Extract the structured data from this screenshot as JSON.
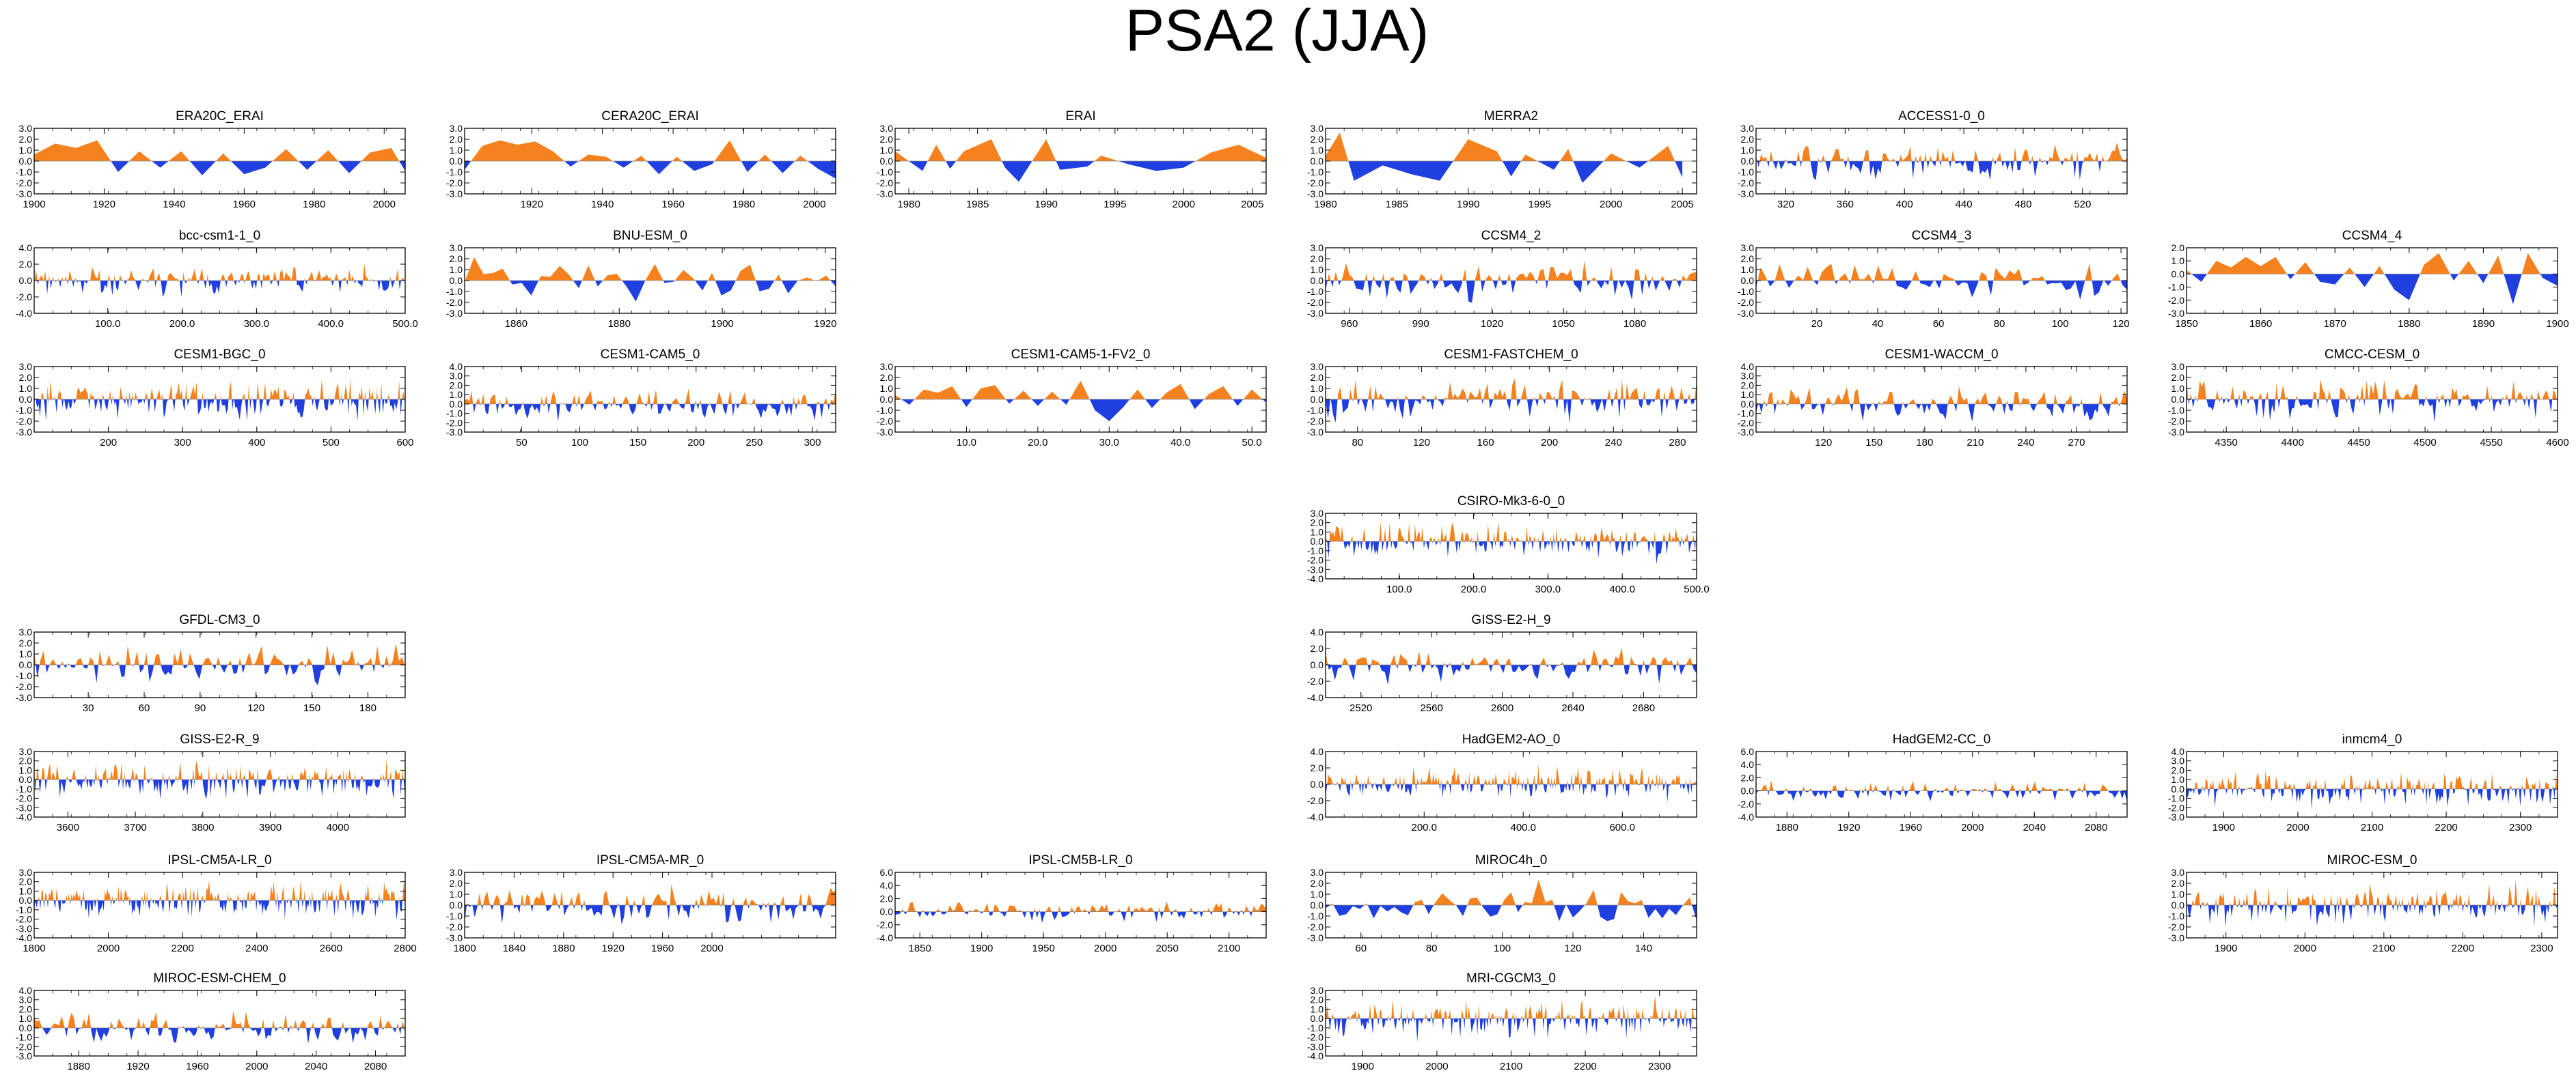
{
  "title": "PSA2 (JJA)",
  "colors": {
    "positive": "#f5821f",
    "negative": "#1f3fe0",
    "axis": "#000000"
  },
  "chart_data": [
    {
      "type": "area",
      "title": "ERA20C_ERAI",
      "xlim": [
        1900,
        2006
      ],
      "ylim": [
        -3,
        3
      ],
      "yticks": [
        "3.0",
        "2.0",
        "1.0",
        "0.0",
        "-1.0",
        "-2.0",
        "-3.0"
      ],
      "xticks": [
        "1900",
        "1920",
        "1940",
        "1960",
        "1980",
        "2000"
      ],
      "series": {
        "x": [
          1900,
          1906,
          1912,
          1918,
          1924,
          1930,
          1936,
          1942,
          1948,
          1954,
          1960,
          1966,
          1972,
          1978,
          1984,
          1990,
          1996,
          2002,
          2006
        ],
        "y": [
          0.6,
          1.6,
          1.2,
          1.9,
          -1.0,
          0.9,
          -0.6,
          0.9,
          -1.3,
          0.7,
          -1.2,
          -0.6,
          1.1,
          -0.8,
          1.0,
          -1.1,
          0.8,
          1.2,
          -0.9
        ]
      }
    },
    {
      "type": "area",
      "title": "CERA20C_ERAI",
      "xlim": [
        1901,
        2006
      ],
      "ylim": [
        -3,
        3
      ],
      "yticks": [
        "3.0",
        "2.0",
        "1.0",
        "0.0",
        "-1.0",
        "-2.0",
        "-3.0"
      ],
      "xticks": [
        "1920",
        "1940",
        "1960",
        "1980",
        "2000"
      ],
      "series": {
        "x": [
          1901,
          1906,
          1911,
          1916,
          1921,
          1926,
          1931,
          1936,
          1941,
          1946,
          1951,
          1956,
          1961,
          1966,
          1971,
          1976,
          1981,
          1986,
          1991,
          1996,
          2001,
          2006
        ],
        "y": [
          -0.8,
          1.4,
          1.9,
          1.5,
          1.8,
          0.9,
          -0.5,
          0.6,
          0.4,
          -0.6,
          0.5,
          -1.2,
          0.4,
          -0.9,
          -0.3,
          1.9,
          -1.0,
          0.6,
          -1.1,
          0.5,
          -0.7,
          -1.6
        ]
      }
    },
    {
      "type": "area",
      "title": "ERAI",
      "xlim": [
        1979,
        2006
      ],
      "ylim": [
        -3,
        3
      ],
      "yticks": [
        "3.0",
        "2.0",
        "1.0",
        "0.0",
        "-1.0",
        "-2.0",
        "-3.0"
      ],
      "xticks": [
        "1980",
        "1985",
        "1990",
        "1995",
        "2000",
        "2005"
      ],
      "series": {
        "x": [
          1979,
          1981,
          1982,
          1983,
          1984,
          1986,
          1987,
          1988,
          1990,
          1991,
          1993,
          1994,
          1996,
          1998,
          2000,
          2002,
          2004,
          2006
        ],
        "y": [
          0.9,
          -0.9,
          1.5,
          -0.7,
          0.9,
          2.0,
          -0.6,
          -1.9,
          2.0,
          -0.8,
          -0.5,
          0.5,
          -0.3,
          -0.9,
          -0.6,
          0.8,
          1.5,
          0.3
        ]
      }
    },
    {
      "type": "area",
      "title": "MERRA2",
      "xlim": [
        1980,
        2006
      ],
      "ylim": [
        -3,
        3
      ],
      "yticks": [
        "3.0",
        "2.0",
        "1.0",
        "0.0",
        "-1.0",
        "-2.0",
        "-3.0"
      ],
      "xticks": [
        "1980",
        "1985",
        "1990",
        "1995",
        "2000",
        "2005"
      ],
      "series": {
        "x": [
          1980,
          1981,
          1982,
          1984,
          1986,
          1988,
          1990,
          1992,
          1993,
          1994,
          1996,
          1997,
          1998,
          2000,
          2002,
          2004,
          2005
        ],
        "y": [
          0.5,
          2.6,
          -1.8,
          -0.4,
          -1.2,
          -1.8,
          2.0,
          0.9,
          -1.4,
          0.6,
          -0.8,
          1.1,
          -2.0,
          0.7,
          -0.6,
          1.4,
          -1.5
        ]
      }
    },
    {
      "type": "area",
      "title": "ACCESS1-0_0",
      "xlim": [
        300,
        550
      ],
      "ylim": [
        -3,
        3
      ],
      "yticks": [
        "3.0",
        "2.0",
        "1.0",
        "0.0",
        "-1.0",
        "-2.0",
        "-3.0"
      ],
      "xticks": [
        "320",
        "360",
        "400",
        "440",
        "480",
        "520"
      ],
      "series": {
        "gen": {
          "n": 150,
          "amp": 1.4,
          "seed": 5
        }
      }
    },
    {
      "type": "area",
      "title": "bcc-csm1-1_0",
      "xlim": [
        1,
        500
      ],
      "ylim": [
        -4,
        4
      ],
      "yticks": [
        "4.0",
        "2.0",
        "0.0",
        "-2.0",
        "-4.0"
      ],
      "xticks": [
        "100.0",
        "200.0",
        "300.0",
        "400.0",
        "500.0"
      ],
      "series": {
        "gen": {
          "n": 200,
          "amp": 1.5,
          "seed": 7
        }
      }
    },
    {
      "type": "area",
      "title": "BNU-ESM_0",
      "xlim": [
        1850,
        1922
      ],
      "ylim": [
        -3,
        3
      ],
      "yticks": [
        "3.0",
        "2.0",
        "1.0",
        "0.0",
        "-1.0",
        "-2.0",
        "-3.0"
      ],
      "xticks": [
        "1860",
        "1880",
        "1900",
        "1920"
      ],
      "series": {
        "gen": {
          "n": 40,
          "amp": 1.6,
          "seed": 11
        }
      }
    },
    {
      "type": "area",
      "title": "CCSM4_2",
      "xlim": [
        950,
        1106
      ],
      "ylim": [
        -3,
        3
      ],
      "yticks": [
        "3.0",
        "2.0",
        "1.0",
        "0.0",
        "-1.0",
        "-2.0",
        "-3.0"
      ],
      "xticks": [
        "960",
        "990",
        "1020",
        "1050",
        "1080"
      ],
      "series": {
        "gen": {
          "n": 110,
          "amp": 1.5,
          "seed": 13
        }
      }
    },
    {
      "type": "area",
      "title": "CCSM4_3",
      "xlim": [
        0,
        122
      ],
      "ylim": [
        -3,
        3
      ],
      "yticks": [
        "3.0",
        "2.0",
        "1.0",
        "0.0",
        "-1.0",
        "-2.0",
        "-3.0"
      ],
      "xticks": [
        "20",
        "40",
        "60",
        "80",
        "100",
        "120"
      ],
      "series": {
        "gen": {
          "n": 80,
          "amp": 1.4,
          "seed": 17
        }
      }
    },
    {
      "type": "area",
      "title": "CCSM4_4",
      "xlim": [
        1850,
        1900
      ],
      "ylim": [
        -3,
        2
      ],
      "yticks": [
        "2.0",
        "1.0",
        "0.0",
        "-1.0",
        "-2.0",
        "-3.0"
      ],
      "xticks": [
        "1850",
        "1860",
        "1870",
        "1880",
        "1890",
        "1900"
      ],
      "series": {
        "x": [
          1850,
          1852,
          1854,
          1856,
          1858,
          1860,
          1862,
          1864,
          1866,
          1868,
          1870,
          1872,
          1874,
          1876,
          1878,
          1880,
          1882,
          1884,
          1886,
          1888,
          1890,
          1892,
          1894,
          1896,
          1898,
          1900
        ],
        "y": [
          0.3,
          -0.6,
          1.0,
          0.5,
          1.3,
          0.6,
          1.3,
          -0.4,
          0.9,
          -0.6,
          -0.8,
          0.5,
          -1.0,
          0.6,
          -1.2,
          -2.0,
          0.7,
          1.6,
          -0.5,
          1.0,
          -0.7,
          1.4,
          -2.3,
          1.6,
          -0.3,
          -0.9
        ]
      }
    },
    {
      "type": "area",
      "title": "CESM1-BGC_0",
      "xlim": [
        100,
        600
      ],
      "ylim": [
        -3,
        3
      ],
      "yticks": [
        "3.0",
        "2.0",
        "1.0",
        "0.0",
        "-1.0",
        "-2.0",
        "-3.0"
      ],
      "xticks": [
        "200",
        "300",
        "400",
        "500",
        "600"
      ],
      "series": {
        "gen": {
          "n": 250,
          "amp": 1.6,
          "seed": 19
        }
      }
    },
    {
      "type": "area",
      "title": "CESM1-CAM5_0",
      "xlim": [
        1,
        320
      ],
      "ylim": [
        -3,
        4
      ],
      "yticks": [
        "4.0",
        "3.0",
        "2.0",
        "1.0",
        "0.0",
        "-1.0",
        "-2.0",
        "-3.0"
      ],
      "xticks": [
        "50",
        "100",
        "150",
        "200",
        "250",
        "300"
      ],
      "series": {
        "gen": {
          "n": 160,
          "amp": 1.4,
          "seed": 23
        }
      }
    },
    {
      "type": "area",
      "title": "CESM1-CAM5-1-FV2_0",
      "xlim": [
        0,
        52
      ],
      "ylim": [
        -3,
        3
      ],
      "yticks": [
        "3.0",
        "2.0",
        "1.0",
        "0.0",
        "-1.0",
        "-2.0",
        "-3.0"
      ],
      "xticks": [
        "10.0",
        "20.0",
        "30.0",
        "40.0",
        "50.0"
      ],
      "series": {
        "x": [
          0,
          2,
          4,
          6,
          8,
          10,
          12,
          14,
          16,
          18,
          20,
          22,
          24,
          26,
          28,
          30,
          32,
          34,
          36,
          38,
          40,
          42,
          44,
          46,
          48,
          50,
          52
        ],
        "y": [
          0.4,
          -0.5,
          0.9,
          0.6,
          1.2,
          -0.7,
          1.0,
          1.3,
          -0.4,
          0.8,
          -0.6,
          0.7,
          -0.5,
          1.7,
          -1.0,
          -2.0,
          -0.7,
          0.9,
          -0.8,
          0.6,
          1.4,
          -0.9,
          0.5,
          1.2,
          -0.6,
          0.9,
          -0.3
        ]
      }
    },
    {
      "type": "area",
      "title": "CESM1-FASTCHEM_0",
      "xlim": [
        60,
        292
      ],
      "ylim": [
        -3,
        3
      ],
      "yticks": [
        "3.0",
        "2.0",
        "1.0",
        "0.0",
        "-1.0",
        "-2.0",
        "-3.0"
      ],
      "xticks": [
        "80",
        "120",
        "160",
        "200",
        "240",
        "280"
      ],
      "series": {
        "gen": {
          "n": 150,
          "amp": 1.5,
          "seed": 29
        }
      }
    },
    {
      "type": "area",
      "title": "CESM1-WACCM_0",
      "xlim": [
        80,
        300
      ],
      "ylim": [
        -3,
        4
      ],
      "yticks": [
        "4.0",
        "3.0",
        "2.0",
        "1.0",
        "0.0",
        "-1.0",
        "-2.0",
        "-3.0"
      ],
      "xticks": [
        "120",
        "150",
        "180",
        "210",
        "240",
        "270"
      ],
      "series": {
        "gen": {
          "n": 140,
          "amp": 1.5,
          "seed": 31
        }
      }
    },
    {
      "type": "area",
      "title": "CMCC-CESM_0",
      "xlim": [
        4320,
        4600
      ],
      "ylim": [
        -3,
        3
      ],
      "yticks": [
        "3.0",
        "2.0",
        "1.0",
        "0.0",
        "-1.0",
        "-2.0",
        "-3.0"
      ],
      "xticks": [
        "4350",
        "4400",
        "4450",
        "4500",
        "4550",
        "4600"
      ],
      "series": {
        "gen": {
          "n": 170,
          "amp": 1.5,
          "seed": 37
        }
      }
    },
    {
      "type": "area",
      "title": "CSIRO-Mk3-6-0_0",
      "xlim": [
        1,
        500
      ],
      "ylim": [
        -4,
        3
      ],
      "yticks": [
        "3.0",
        "2.0",
        "1.0",
        "0.0",
        "-1.0",
        "-2.0",
        "-3.0",
        "-4.0"
      ],
      "xticks": [
        "100.0",
        "200.0",
        "300.0",
        "400.0",
        "500.0"
      ],
      "series": {
        "gen": {
          "n": 250,
          "amp": 1.6,
          "seed": 41
        }
      }
    },
    {
      "type": "area",
      "title": "GFDL-CM3_0",
      "xlim": [
        1,
        200
      ],
      "ylim": [
        -3,
        3
      ],
      "yticks": [
        "3.0",
        "2.0",
        "1.0",
        "0.0",
        "-1.0",
        "-2.0",
        "-3.0"
      ],
      "xticks": [
        "30",
        "60",
        "90",
        "120",
        "150",
        "180"
      ],
      "series": {
        "gen": {
          "n": 120,
          "amp": 1.5,
          "seed": 43
        }
      }
    },
    {
      "type": "area",
      "title": "GISS-E2-H_9",
      "xlim": [
        2500,
        2710
      ],
      "ylim": [
        -4,
        4
      ],
      "yticks": [
        "4.0",
        "2.0",
        "0.0",
        "-2.0",
        "-4.0"
      ],
      "xticks": [
        "2520",
        "2560",
        "2600",
        "2640",
        "2680"
      ],
      "series": {
        "gen": {
          "n": 120,
          "amp": 1.6,
          "seed": 47
        }
      }
    },
    {
      "type": "area",
      "title": "GISS-E2-R_9",
      "xlim": [
        3550,
        4100
      ],
      "ylim": [
        -4,
        3
      ],
      "yticks": [
        "3.0",
        "2.0",
        "1.0",
        "0.0",
        "-1.0",
        "-2.0",
        "-3.0",
        "-4.0"
      ],
      "xticks": [
        "3600",
        "3700",
        "3800",
        "3900",
        "4000"
      ],
      "series": {
        "gen": {
          "n": 260,
          "amp": 1.6,
          "seed": 53
        }
      }
    },
    {
      "type": "area",
      "title": "HadGEM2-AO_0",
      "xlim": [
        1,
        750
      ],
      "ylim": [
        -4,
        4
      ],
      "yticks": [
        "4.0",
        "2.0",
        "0.0",
        "-2.0",
        "-4.0"
      ],
      "xticks": [
        "200.0",
        "400.0",
        "600.0"
      ],
      "series": {
        "gen": {
          "n": 280,
          "amp": 1.6,
          "seed": 59
        }
      }
    },
    {
      "type": "area",
      "title": "HadGEM2-CC_0",
      "xlim": [
        1860,
        2100
      ],
      "ylim": [
        -4,
        6
      ],
      "yticks": [
        "6.0",
        "4.0",
        "2.0",
        "0.0",
        "-2.0",
        "-4.0"
      ],
      "xticks": [
        "1880",
        "1920",
        "1960",
        "2000",
        "2040",
        "2080"
      ],
      "series": {
        "gen": {
          "n": 150,
          "amp": 1.3,
          "seed": 61
        }
      }
    },
    {
      "type": "area",
      "title": "inmcm4_0",
      "xlim": [
        1850,
        2350
      ],
      "ylim": [
        -3,
        4
      ],
      "yticks": [
        "4.0",
        "3.0",
        "2.0",
        "1.0",
        "0.0",
        "-1.0",
        "-2.0",
        "-3.0"
      ],
      "xticks": [
        "1900",
        "2000",
        "2100",
        "2200",
        "2300"
      ],
      "series": {
        "gen": {
          "n": 250,
          "amp": 1.6,
          "seed": 67
        }
      }
    },
    {
      "type": "area",
      "title": "IPSL-CM5A-LR_0",
      "xlim": [
        1800,
        2800
      ],
      "ylim": [
        -4,
        3
      ],
      "yticks": [
        "3.0",
        "2.0",
        "1.0",
        "0.0",
        "-1.0",
        "-2.0",
        "-3.0",
        "-4.0"
      ],
      "xticks": [
        "1800",
        "2000",
        "2200",
        "2400",
        "2600",
        "2800"
      ],
      "series": {
        "gen": {
          "n": 300,
          "amp": 1.6,
          "seed": 71
        }
      }
    },
    {
      "type": "area",
      "title": "IPSL-CM5A-MR_0",
      "xlim": [
        1800,
        2100
      ],
      "ylim": [
        -3,
        3
      ],
      "yticks": [
        "3.0",
        "2.0",
        "1.0",
        "0.0",
        "-1.0",
        "-2.0",
        "-3.0"
      ],
      "xticks": [
        "1800",
        "1840",
        "1880",
        "1920",
        "1960",
        "2000"
      ],
      "series": {
        "gen": {
          "n": 150,
          "amp": 1.5,
          "seed": 73
        }
      }
    },
    {
      "type": "area",
      "title": "IPSL-CM5B-LR_0",
      "xlim": [
        1830,
        2130
      ],
      "ylim": [
        -4,
        6
      ],
      "yticks": [
        "6.0",
        "4.0",
        "2.0",
        "0.0",
        "-2.0",
        "-4.0"
      ],
      "xticks": [
        "1850",
        "1900",
        "1950",
        "2000",
        "2050",
        "2100"
      ],
      "series": {
        "gen": {
          "n": 150,
          "amp": 1.3,
          "seed": 79
        }
      }
    },
    {
      "type": "area",
      "title": "MIROC4h_0",
      "xlim": [
        50,
        155
      ],
      "ylim": [
        -3,
        3
      ],
      "yticks": [
        "3.0",
        "2.0",
        "1.0",
        "0.0",
        "-1.0",
        "-2.0",
        "-3.0"
      ],
      "xticks": [
        "60",
        "80",
        "100",
        "120",
        "140"
      ],
      "series": {
        "gen": {
          "n": 55,
          "amp": 1.5,
          "seed": 83
        }
      }
    },
    {
      "type": "area",
      "title": "MIROC-ESM_0",
      "xlim": [
        1850,
        2320
      ],
      "ylim": [
        -3,
        3
      ],
      "yticks": [
        "3.0",
        "2.0",
        "1.0",
        "0.0",
        "-1.0",
        "-2.0",
        "-3.0"
      ],
      "xticks": [
        "1900",
        "2000",
        "2100",
        "2200",
        "2300"
      ],
      "series": {
        "gen": {
          "n": 240,
          "amp": 1.6,
          "seed": 89
        }
      }
    },
    {
      "type": "area",
      "title": "MIROC-ESM-CHEM_0",
      "xlim": [
        1850,
        2100
      ],
      "ylim": [
        -3,
        4
      ],
      "yticks": [
        "4.0",
        "3.0",
        "2.0",
        "1.0",
        "0.0",
        "-1.0",
        "-2.0",
        "-3.0"
      ],
      "xticks": [
        "1880",
        "1920",
        "1960",
        "2000",
        "2040",
        "2080"
      ],
      "series": {
        "gen": {
          "n": 150,
          "amp": 1.4,
          "seed": 97
        }
      }
    },
    {
      "type": "area",
      "title": "MRI-CGCM3_0",
      "xlim": [
        1850,
        2350
      ],
      "ylim": [
        -4,
        3
      ],
      "yticks": [
        "3.0",
        "2.0",
        "1.0",
        "0.0",
        "-1.0",
        "-2.0",
        "-3.0",
        "-4.0"
      ],
      "xticks": [
        "1900",
        "2000",
        "2100",
        "2200",
        "2300"
      ],
      "series": {
        "gen": {
          "n": 260,
          "amp": 1.6,
          "seed": 101
        }
      }
    }
  ]
}
